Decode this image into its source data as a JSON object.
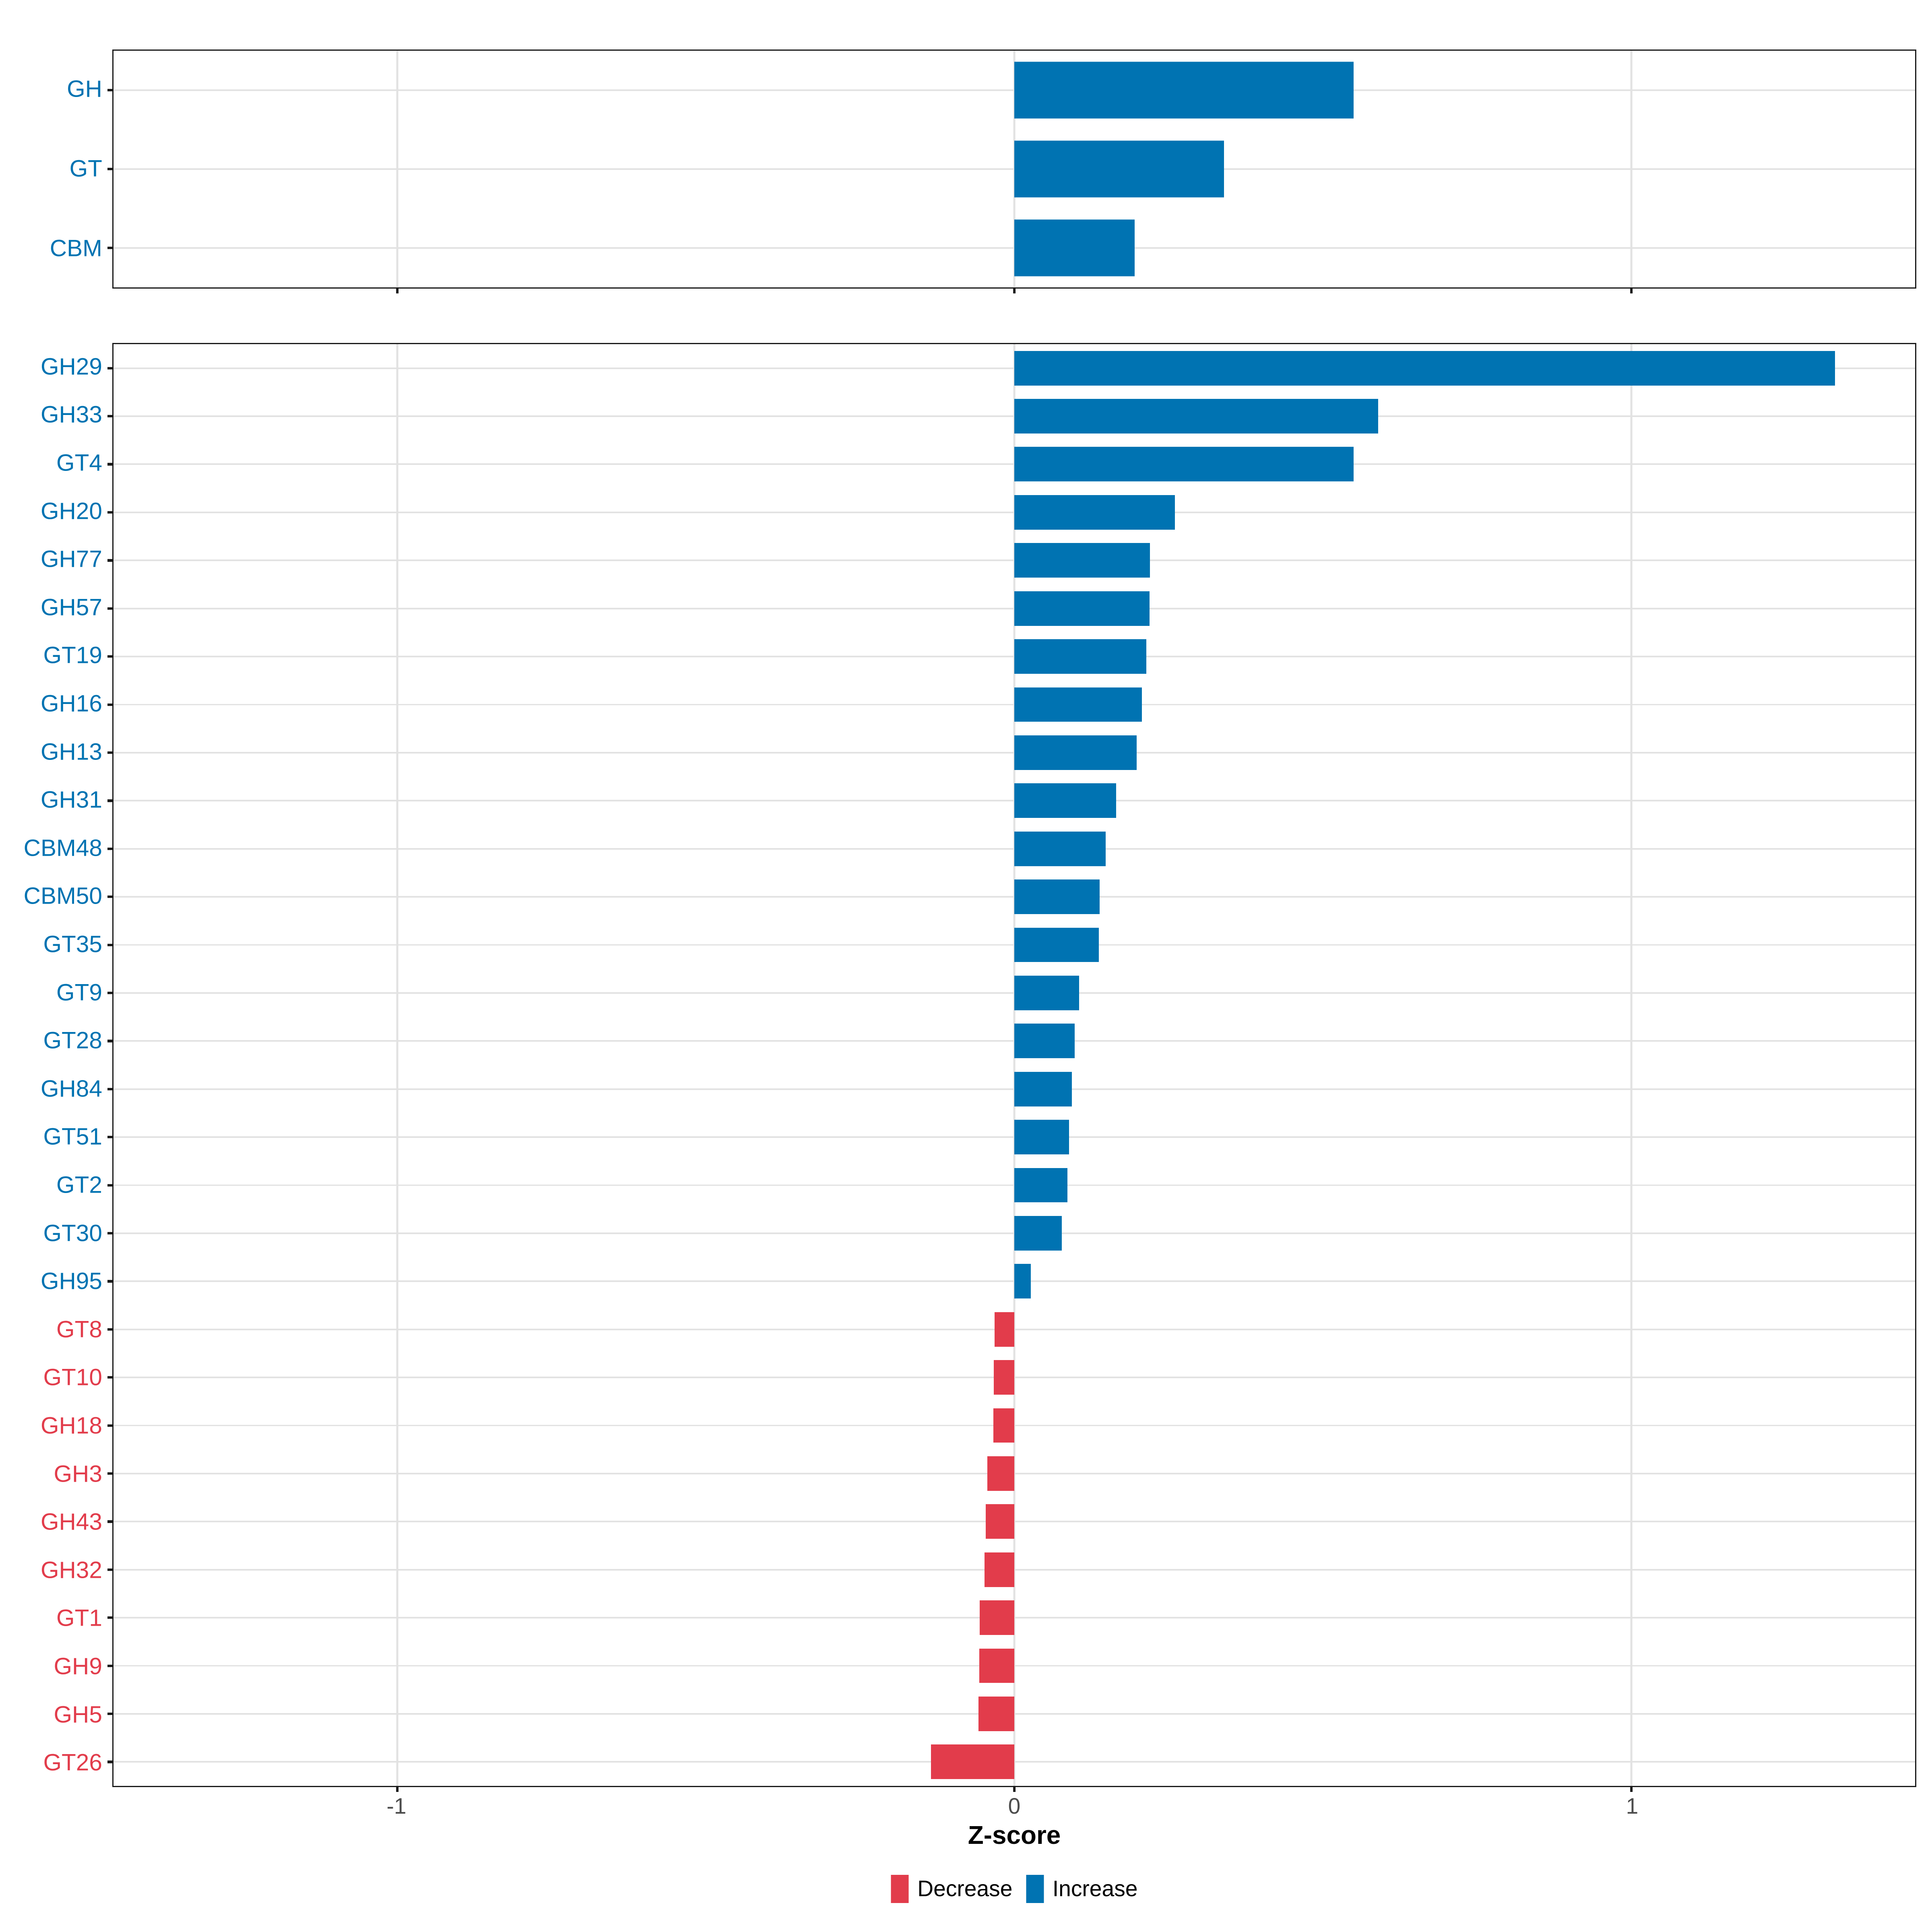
{
  "chart_data": {
    "type": "bar",
    "orientation": "horizontal",
    "title": "",
    "xlabel": "Z-score",
    "xlim": [
      -1.46,
      1.46
    ],
    "x_ticks": [
      -1,
      0,
      1
    ],
    "x_tick_labels": [
      "-1",
      "0",
      "1"
    ],
    "grid": "major vertical gridlines at x ticks, light horizontal gridline at every category row",
    "legend_position": "bottom-center",
    "panel_layout": "two stacked panels sharing the x axis",
    "colors": {
      "increase": "#0073B2",
      "decrease": "#E23C4B",
      "gridline": "#E2E2E2",
      "panel_border": "#1A1A1A",
      "axis_tick_text": "#4D4D4D",
      "axis_title_text": "#000000",
      "background": "#FFFFFF"
    },
    "legend": [
      {
        "key": "decrease",
        "label": "Decrease"
      },
      {
        "key": "increase",
        "label": "Increase"
      }
    ],
    "panels": [
      {
        "name": "category-summary",
        "categories": [
          "GH",
          "GT",
          "CBM"
        ],
        "values": [
          0.55,
          0.34,
          0.195
        ]
      },
      {
        "name": "family-detail",
        "categories": [
          "GH29",
          "GH33",
          "GT4",
          "GH20",
          "GH77",
          "GH57",
          "GT19",
          "GH16",
          "GH13",
          "GH31",
          "CBM48",
          "CBM50",
          "GT35",
          "GT9",
          "GT28",
          "GH84",
          "GT51",
          "GT2",
          "GT30",
          "GH95",
          "GT8",
          "GT10",
          "GH18",
          "GH3",
          "GH43",
          "GH32",
          "GT1",
          "GH9",
          "GH5",
          "GT26"
        ],
        "values": [
          1.33,
          0.59,
          0.55,
          0.26,
          0.22,
          0.219,
          0.214,
          0.207,
          0.198,
          0.165,
          0.148,
          0.138,
          0.137,
          0.105,
          0.098,
          0.093,
          0.089,
          0.086,
          0.077,
          0.027,
          -0.032,
          -0.033,
          -0.034,
          -0.044,
          -0.046,
          -0.048,
          -0.056,
          -0.057,
          -0.058,
          -0.135
        ]
      }
    ]
  }
}
